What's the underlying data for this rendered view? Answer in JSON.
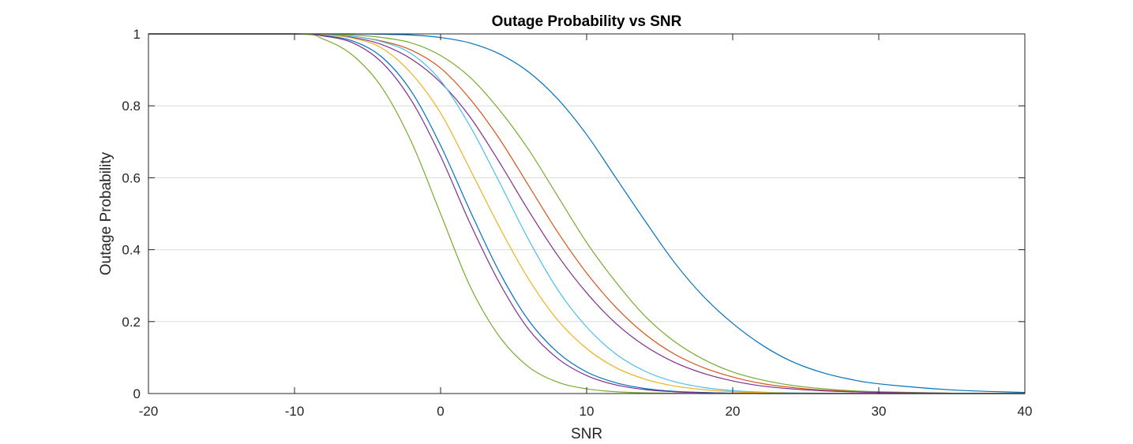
{
  "chart_data": {
    "type": "line",
    "title": "Outage Probability vs SNR",
    "xlabel": "SNR",
    "ylabel": "Outage Probability",
    "xlim": [
      -20,
      40
    ],
    "ylim": [
      0,
      1
    ],
    "xticks": [
      -20,
      -10,
      0,
      10,
      20,
      30,
      40
    ],
    "yticks": [
      0,
      0.2,
      0.4,
      0.6,
      0.8,
      1
    ],
    "x_tick_labels": [
      "-20",
      "-10",
      "0",
      "10",
      "20",
      "30",
      "40"
    ],
    "y_tick_labels": [
      "0",
      "0.2",
      "0.4",
      "0.6",
      "0.8",
      "1"
    ],
    "grid": "y-major",
    "x": [
      -20,
      -10,
      -8,
      -6,
      -4,
      -2,
      0,
      2,
      4,
      6,
      8,
      10,
      12,
      14,
      16,
      18,
      20,
      22,
      24,
      26,
      28,
      30,
      35,
      40
    ],
    "series": [
      {
        "color": "#0072BD",
        "values": [
          1,
          1,
          1,
          1,
          0.999,
          0.997,
          0.99,
          0.975,
          0.945,
          0.895,
          0.82,
          0.72,
          0.6,
          0.48,
          0.365,
          0.27,
          0.195,
          0.135,
          0.09,
          0.06,
          0.04,
          0.027,
          0.01,
          0.003
        ]
      },
      {
        "color": "#77AC30",
        "values": [
          1,
          1,
          0.999,
          0.997,
          0.99,
          0.975,
          0.94,
          0.88,
          0.79,
          0.68,
          0.55,
          0.42,
          0.31,
          0.215,
          0.145,
          0.095,
          0.06,
          0.038,
          0.023,
          0.014,
          0.008,
          0.005,
          0.001,
          0
        ]
      },
      {
        "color": "#D95319",
        "values": [
          1,
          1,
          0.998,
          0.993,
          0.98,
          0.955,
          0.905,
          0.82,
          0.71,
          0.58,
          0.45,
          0.335,
          0.24,
          0.165,
          0.11,
          0.072,
          0.046,
          0.028,
          0.017,
          0.01,
          0.006,
          0.003,
          0.001,
          0
        ]
      },
      {
        "color": "#7E2F8E",
        "values": [
          1,
          1,
          0.997,
          0.99,
          0.97,
          0.93,
          0.865,
          0.77,
          0.645,
          0.51,
          0.385,
          0.28,
          0.195,
          0.132,
          0.087,
          0.056,
          0.035,
          0.021,
          0.013,
          0.008,
          0.005,
          0.003,
          0.001,
          0
        ]
      },
      {
        "color": "#4DBEEE",
        "values": [
          1,
          1,
          0.998,
          0.993,
          0.978,
          0.945,
          0.87,
          0.745,
          0.59,
          0.43,
          0.29,
          0.185,
          0.11,
          0.062,
          0.033,
          0.017,
          0.008,
          0.004,
          0.002,
          0.001,
          0,
          0,
          0,
          0
        ]
      },
      {
        "color": "#EDB120",
        "values": [
          1,
          1,
          0.997,
          0.988,
          0.96,
          0.89,
          0.78,
          0.625,
          0.465,
          0.32,
          0.205,
          0.125,
          0.072,
          0.04,
          0.021,
          0.011,
          0.005,
          0.003,
          0.001,
          0,
          0,
          0,
          0,
          0
        ]
      },
      {
        "color": "#0072BD",
        "values": [
          1,
          1,
          0.995,
          0.98,
          0.935,
          0.84,
          0.69,
          0.51,
          0.34,
          0.205,
          0.115,
          0.06,
          0.03,
          0.014,
          0.006,
          0.003,
          0.001,
          0,
          0,
          0,
          0,
          0,
          0,
          0
        ]
      },
      {
        "color": "#7E2F8E",
        "values": [
          1,
          1,
          0.994,
          0.975,
          0.92,
          0.815,
          0.66,
          0.475,
          0.31,
          0.18,
          0.098,
          0.05,
          0.024,
          0.011,
          0.005,
          0.002,
          0.001,
          0,
          0,
          0,
          0,
          0,
          0,
          0
        ]
      },
      {
        "color": "#77AC30",
        "values": [
          1,
          1,
          0.985,
          0.94,
          0.85,
          0.7,
          0.5,
          0.3,
          0.16,
          0.075,
          0.032,
          0.013,
          0.005,
          0.002,
          0.001,
          0,
          0,
          0,
          0,
          0,
          0,
          0,
          0,
          0
        ]
      }
    ]
  }
}
